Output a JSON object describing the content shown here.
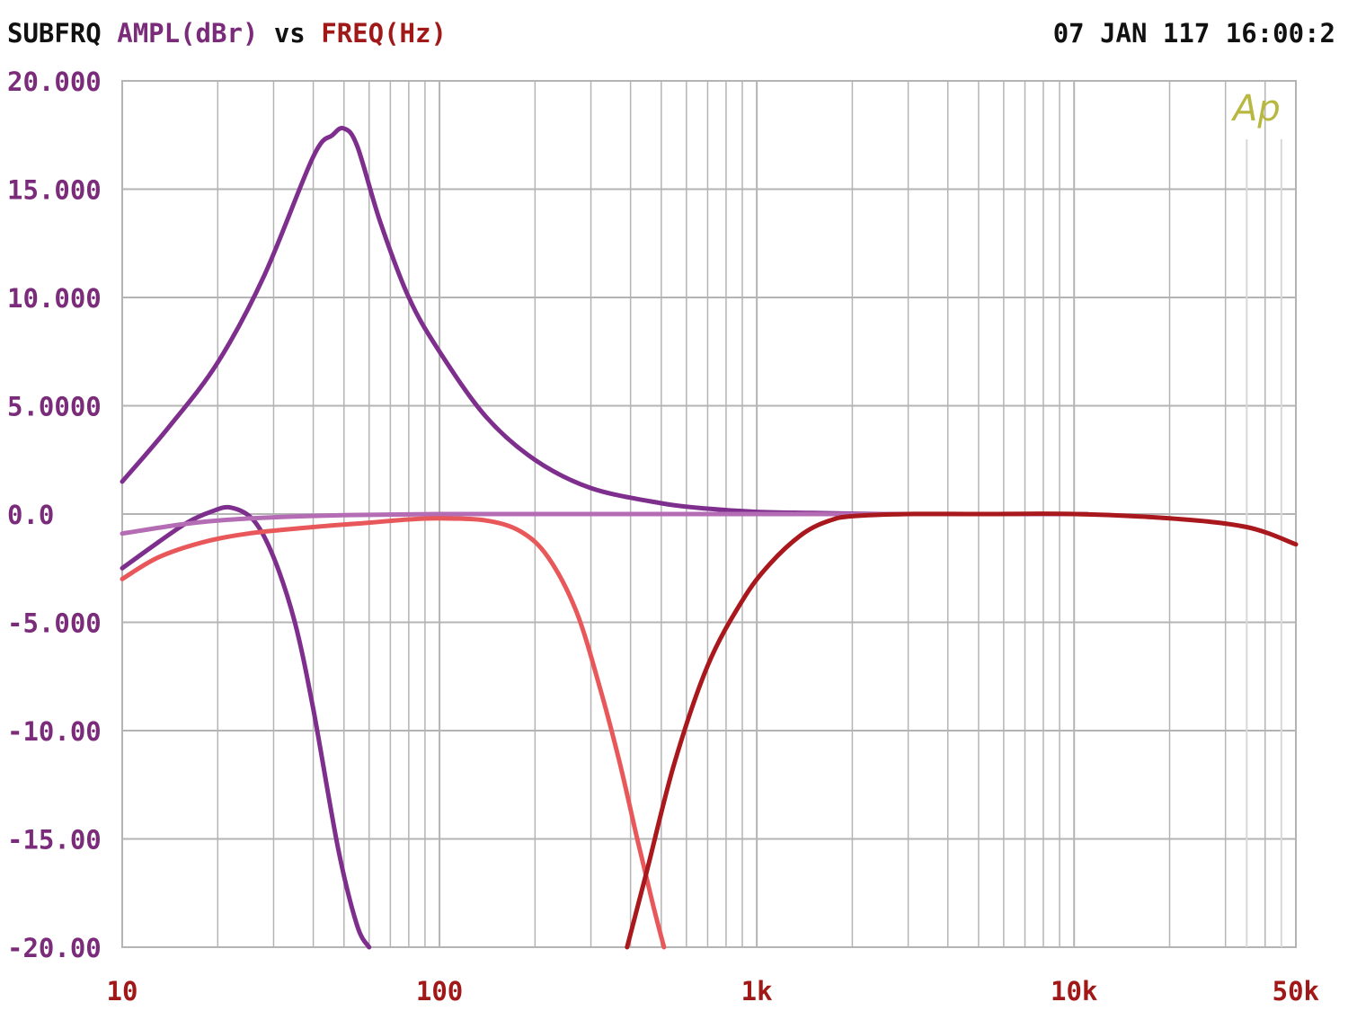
{
  "header": {
    "prefix": "SUBFRQ",
    "y_quantity": "AMPL(dBr)",
    "connector": "vs",
    "x_quantity": "FREQ(Hz)",
    "timestamp": "07 JAN 117 16:00:2"
  },
  "watermark": "Ap",
  "colors": {
    "background": "#ffffff",
    "grid": "#b4b4b4",
    "y_labels": "#7a2b7a",
    "x_labels": "#a01818",
    "watermark": "#b8b840",
    "purple_dark": "#7e2e8c",
    "purple_light": "#b46cb4",
    "salmon": "#e8585a",
    "dark_red": "#a8181c"
  },
  "chart_data": {
    "type": "line",
    "title": "SUBFRQ AMPL(dBr) vs FREQ(Hz)",
    "xlabel": "FREQ(Hz)",
    "ylabel": "AMPL(dBr)",
    "x_scale": "log",
    "xlim": [
      10,
      50000
    ],
    "ylim": [
      -20,
      20
    ],
    "grid": true,
    "x_ticks": [
      {
        "value": 10,
        "label": "10"
      },
      {
        "value": 100,
        "label": "100"
      },
      {
        "value": 1000,
        "label": "1k"
      },
      {
        "value": 10000,
        "label": "10k"
      },
      {
        "value": 50000,
        "label": "50k"
      }
    ],
    "y_ticks": [
      {
        "value": 20,
        "label": "20.000"
      },
      {
        "value": 15,
        "label": "15.000"
      },
      {
        "value": 10,
        "label": "10.000"
      },
      {
        "value": 5,
        "label": "5.0000"
      },
      {
        "value": 0,
        "label": "0.0"
      },
      {
        "value": -5,
        "label": "-5.000"
      },
      {
        "value": -10,
        "label": "-10.00"
      },
      {
        "value": -15,
        "label": "-15.00"
      },
      {
        "value": -20,
        "label": "-20.00"
      }
    ],
    "series": [
      {
        "color": "#7e2e8c",
        "x": [
          10,
          14,
          20,
          28,
          40,
          46,
          50,
          55,
          65,
          80,
          100,
          140,
          200,
          300,
          500,
          700,
          1000,
          1500,
          2500
        ],
        "y": [
          1.5,
          4.0,
          7.0,
          11.0,
          16.5,
          17.5,
          17.8,
          17.0,
          13.5,
          10.0,
          7.5,
          4.5,
          2.5,
          1.2,
          0.5,
          0.25,
          0.1,
          0.05,
          0.0
        ]
      },
      {
        "color": "#7e2e8c",
        "x": [
          10,
          13,
          16,
          19,
          22,
          26,
          30,
          35,
          40,
          48,
          55,
          60
        ],
        "y": [
          -2.5,
          -1.3,
          -0.4,
          0.1,
          0.3,
          -0.3,
          -2.0,
          -5.0,
          -9.0,
          -15.5,
          -19.0,
          -20.0
        ]
      },
      {
        "color": "#b46cb4",
        "x": [
          10,
          15,
          20,
          30,
          50,
          100,
          300,
          1000,
          3000,
          11000
        ],
        "y": [
          -0.9,
          -0.5,
          -0.3,
          -0.15,
          -0.05,
          0.0,
          0.0,
          0.0,
          0.0,
          0.0
        ]
      },
      {
        "color": "#e8585a",
        "x": [
          10,
          13,
          18,
          25,
          40,
          60,
          80,
          100,
          140,
          180,
          220,
          270,
          320,
          370,
          420,
          470,
          510
        ],
        "y": [
          -3.0,
          -2.0,
          -1.3,
          -0.9,
          -0.6,
          -0.4,
          -0.25,
          -0.2,
          -0.3,
          -0.8,
          -2.0,
          -4.5,
          -8.0,
          -11.5,
          -15.0,
          -18.0,
          -20.0
        ]
      },
      {
        "color": "#a8181c",
        "x": [
          390,
          450,
          550,
          700,
          900,
          1100,
          1400,
          1700,
          2000,
          3000,
          5000,
          10000,
          20000,
          35000,
          50000
        ],
        "y": [
          -20.0,
          -16.5,
          -11.5,
          -7.0,
          -4.0,
          -2.3,
          -0.9,
          -0.3,
          -0.1,
          0.0,
          0.0,
          0.0,
          -0.2,
          -0.6,
          -1.4
        ]
      }
    ]
  }
}
